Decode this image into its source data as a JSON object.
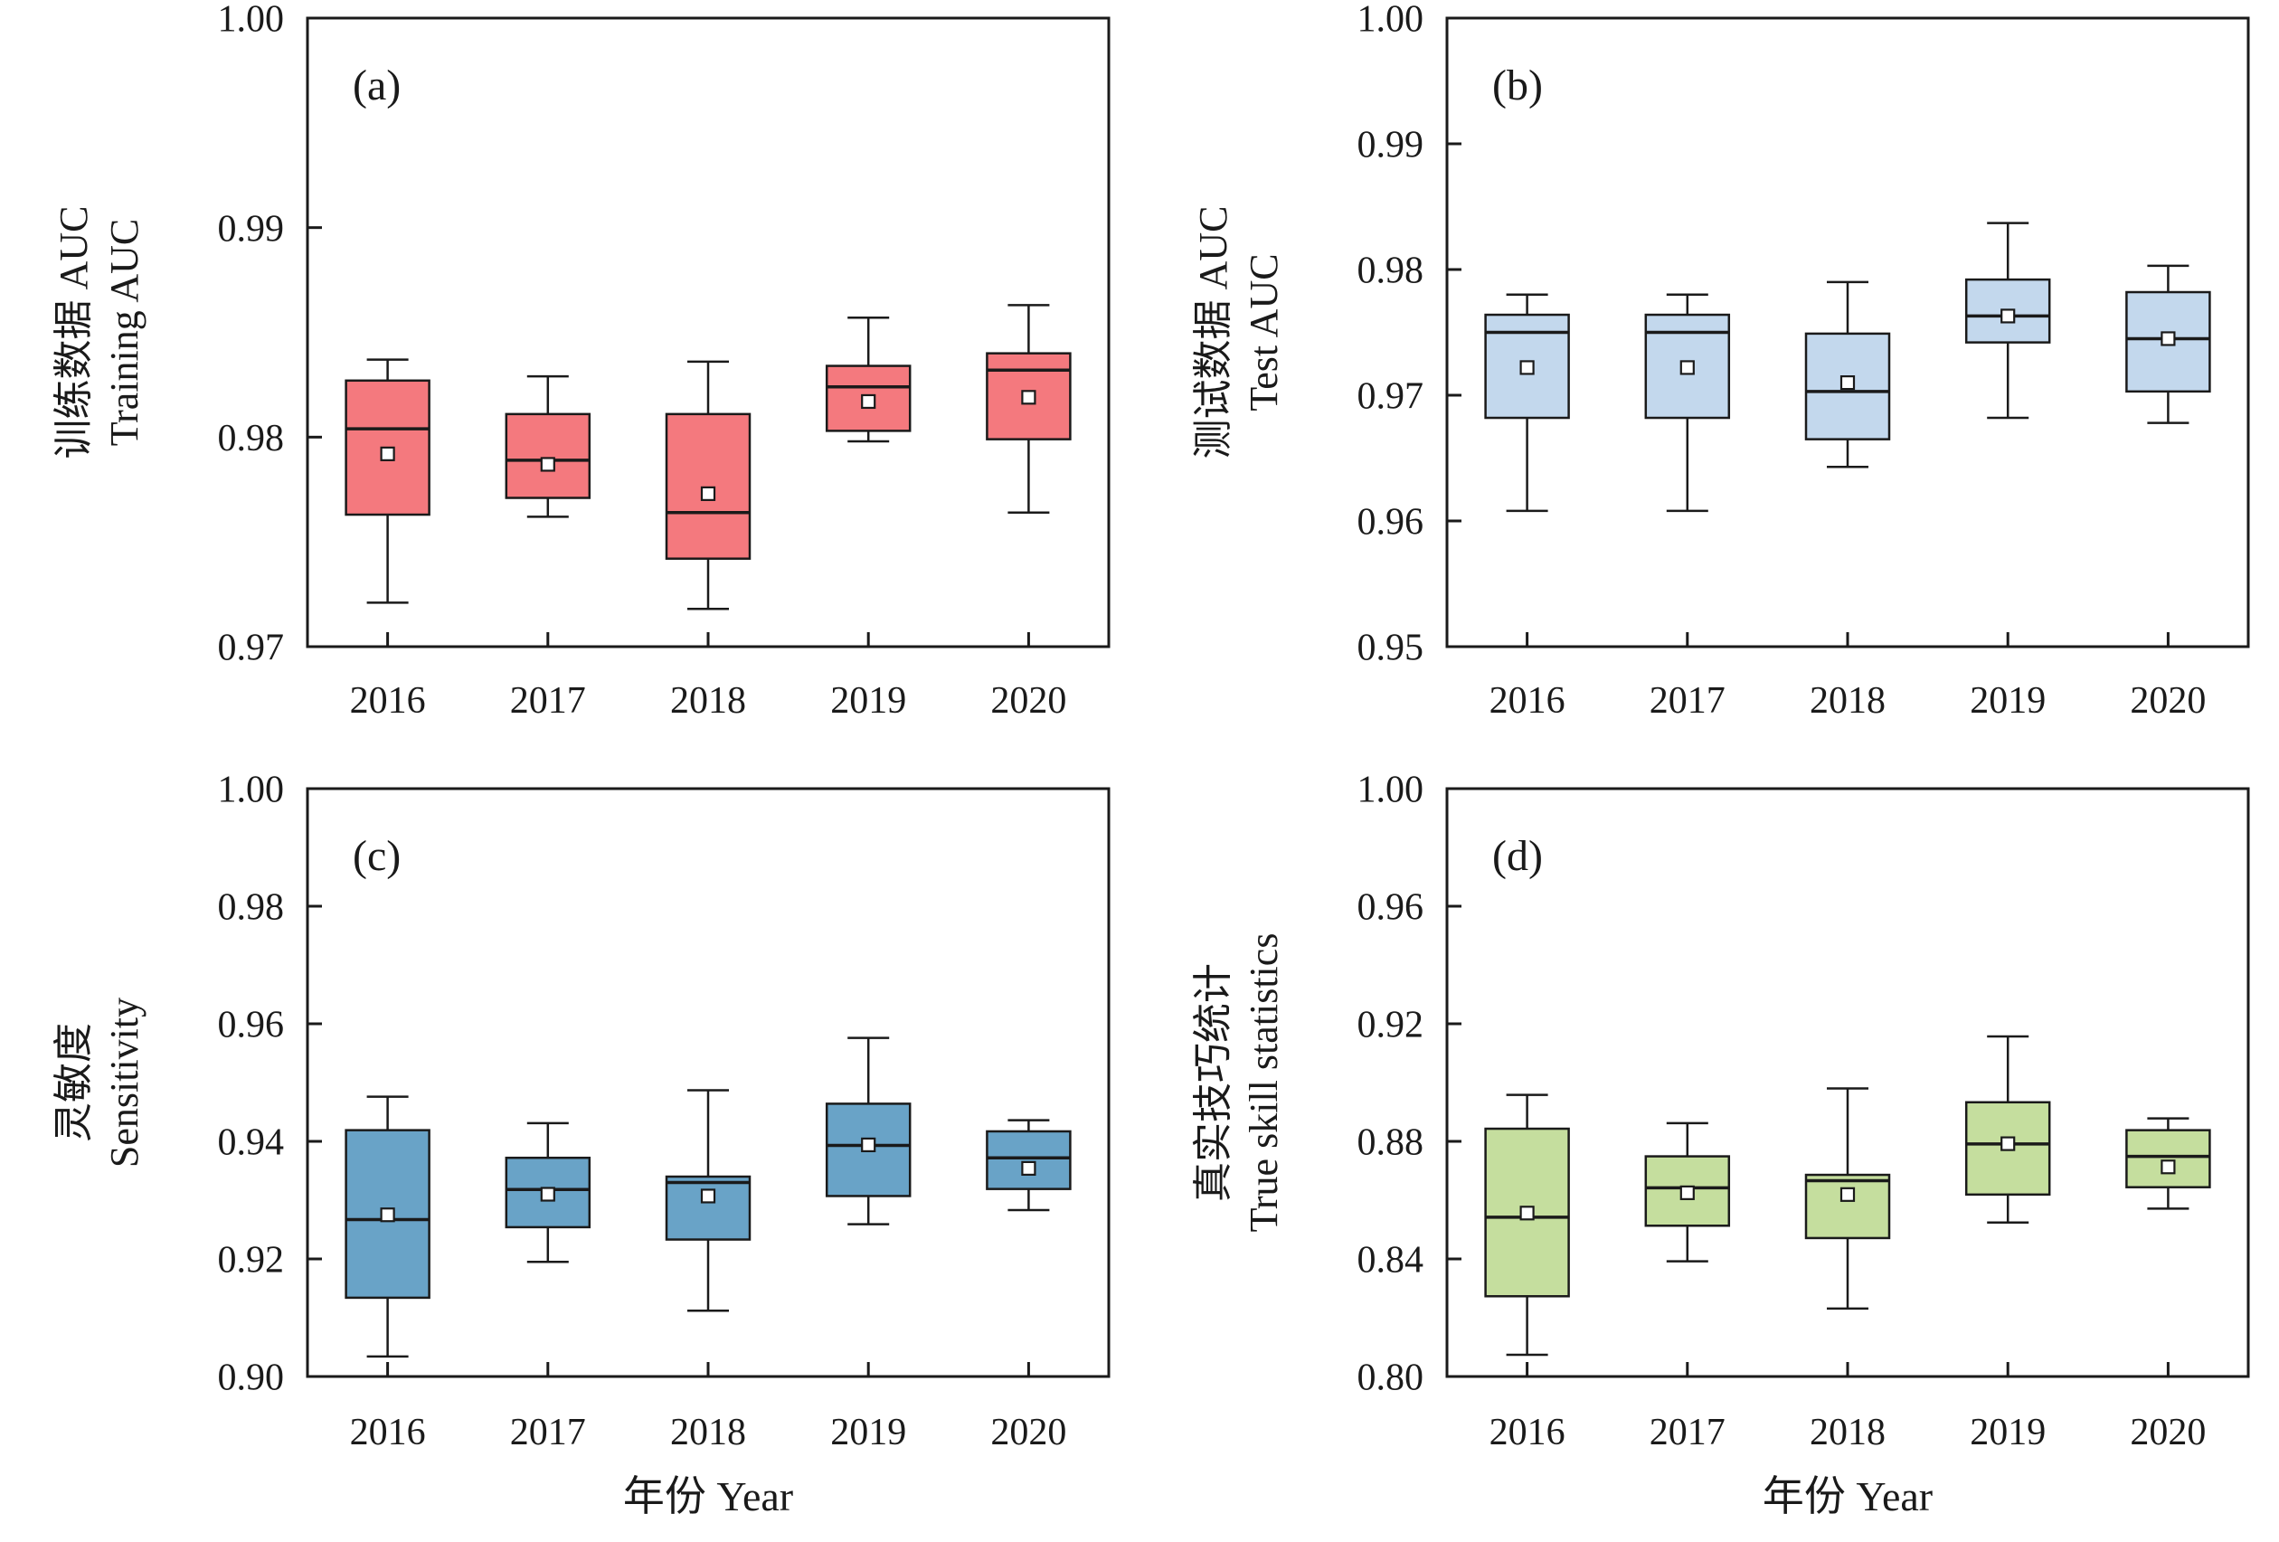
{
  "figure": {
    "background": "#FFFFFF",
    "axis_color": "#1A1A1A",
    "mean_marker": "open-square",
    "categories": [
      "2016",
      "2017",
      "2018",
      "2019",
      "2020"
    ],
    "xlabel": "年份 Year"
  },
  "chart_data": [
    {
      "type": "box",
      "panel_letter": "(a)",
      "ylabel_lines": [
        "训练数据 AUC",
        "Training AUC"
      ],
      "fill": "#F4797E",
      "ylim": [
        0.97,
        1.0
      ],
      "ytick_values": [
        0.97,
        0.98,
        0.99,
        1.0
      ],
      "ytick_labels": [
        "0.97",
        "0.98",
        "0.99",
        "1.00"
      ],
      "categories": [
        "2016",
        "2017",
        "2018",
        "2019",
        "2020"
      ],
      "show_xlabel": false,
      "series": [
        {
          "year": "2016",
          "whisker_low": 0.9721,
          "q1": 0.9763,
          "median": 0.9804,
          "mean": 0.9792,
          "q3": 0.9827,
          "whisker_high": 0.9837
        },
        {
          "year": "2017",
          "whisker_low": 0.9762,
          "q1": 0.9771,
          "median": 0.9789,
          "mean": 0.9787,
          "q3": 0.9811,
          "whisker_high": 0.9829
        },
        {
          "year": "2018",
          "whisker_low": 0.9718,
          "q1": 0.9742,
          "median": 0.9764,
          "mean": 0.9773,
          "q3": 0.9811,
          "whisker_high": 0.9836
        },
        {
          "year": "2019",
          "whisker_low": 0.9798,
          "q1": 0.9803,
          "median": 0.9824,
          "mean": 0.9817,
          "q3": 0.9834,
          "whisker_high": 0.9857
        },
        {
          "year": "2020",
          "whisker_low": 0.9764,
          "q1": 0.9799,
          "median": 0.9832,
          "mean": 0.9819,
          "q3": 0.984,
          "whisker_high": 0.9863
        }
      ]
    },
    {
      "type": "box",
      "panel_letter": "(b)",
      "ylabel_lines": [
        "测试数据 AUC",
        "Test AUC"
      ],
      "fill": "#C3D8ED",
      "ylim": [
        0.95,
        1.0
      ],
      "ytick_values": [
        0.95,
        0.96,
        0.97,
        0.98,
        0.99,
        1.0
      ],
      "ytick_labels": [
        "0.95",
        "0.96",
        "0.97",
        "0.98",
        "0.99",
        "1.00"
      ],
      "categories": [
        "2016",
        "2017",
        "2018",
        "2019",
        "2020"
      ],
      "show_xlabel": false,
      "series": [
        {
          "year": "2016",
          "whisker_low": 0.9608,
          "q1": 0.9682,
          "median": 0.975,
          "mean": 0.9722,
          "q3": 0.9764,
          "whisker_high": 0.978
        },
        {
          "year": "2017",
          "whisker_low": 0.9608,
          "q1": 0.9682,
          "median": 0.975,
          "mean": 0.9722,
          "q3": 0.9764,
          "whisker_high": 0.978
        },
        {
          "year": "2018",
          "whisker_low": 0.9643,
          "q1": 0.9665,
          "median": 0.9703,
          "mean": 0.971,
          "q3": 0.9749,
          "whisker_high": 0.979
        },
        {
          "year": "2019",
          "whisker_low": 0.9682,
          "q1": 0.9742,
          "median": 0.9763,
          "mean": 0.9763,
          "q3": 0.9792,
          "whisker_high": 0.9837
        },
        {
          "year": "2020",
          "whisker_low": 0.9678,
          "q1": 0.9703,
          "median": 0.9745,
          "mean": 0.9745,
          "q3": 0.9782,
          "whisker_high": 0.9803
        }
      ]
    },
    {
      "type": "box",
      "panel_letter": "(c)",
      "ylabel_lines": [
        "灵敏度",
        "Sensitivity"
      ],
      "fill": "#69A3C7",
      "ylim": [
        0.9,
        1.0
      ],
      "ytick_values": [
        0.9,
        0.92,
        0.94,
        0.96,
        0.98,
        1.0
      ],
      "ytick_labels": [
        "0.90",
        "0.92",
        "0.94",
        "0.96",
        "0.98",
        "1.00"
      ],
      "categories": [
        "2016",
        "2017",
        "2018",
        "2019",
        "2020"
      ],
      "show_xlabel": true,
      "xlabel": "年份 Year",
      "series": [
        {
          "year": "2016",
          "whisker_low": 0.9034,
          "q1": 0.9134,
          "median": 0.9267,
          "mean": 0.9275,
          "q3": 0.9419,
          "whisker_high": 0.9476
        },
        {
          "year": "2017",
          "whisker_low": 0.9195,
          "q1": 0.9254,
          "median": 0.9318,
          "mean": 0.931,
          "q3": 0.9372,
          "whisker_high": 0.9431
        },
        {
          "year": "2018",
          "whisker_low": 0.9112,
          "q1": 0.9233,
          "median": 0.933,
          "mean": 0.9307,
          "q3": 0.934,
          "whisker_high": 0.9487
        },
        {
          "year": "2019",
          "whisker_low": 0.9259,
          "q1": 0.9307,
          "median": 0.9393,
          "mean": 0.9394,
          "q3": 0.9464,
          "whisker_high": 0.9576
        },
        {
          "year": "2020",
          "whisker_low": 0.9283,
          "q1": 0.9319,
          "median": 0.9372,
          "mean": 0.9354,
          "q3": 0.9417,
          "whisker_high": 0.9436
        }
      ]
    },
    {
      "type": "box",
      "panel_letter": "(d)",
      "ylabel_lines": [
        "真实技巧统计",
        "True skill statistics"
      ],
      "fill": "#C5DE9E",
      "ylim": [
        0.8,
        1.0
      ],
      "ytick_values": [
        0.8,
        0.84,
        0.88,
        0.92,
        0.96,
        1.0
      ],
      "ytick_labels": [
        "0.80",
        "0.84",
        "0.88",
        "0.92",
        "0.96",
        "1.00"
      ],
      "categories": [
        "2016",
        "2017",
        "2018",
        "2019",
        "2020"
      ],
      "show_xlabel": true,
      "xlabel": "年份 Year",
      "series": [
        {
          "year": "2016",
          "whisker_low": 0.8074,
          "q1": 0.8273,
          "median": 0.8542,
          "mean": 0.8556,
          "q3": 0.8843,
          "whisker_high": 0.8958
        },
        {
          "year": "2017",
          "whisker_low": 0.8392,
          "q1": 0.8513,
          "median": 0.8642,
          "mean": 0.8625,
          "q3": 0.8749,
          "whisker_high": 0.8862
        },
        {
          "year": "2018",
          "whisker_low": 0.8231,
          "q1": 0.8471,
          "median": 0.8666,
          "mean": 0.8619,
          "q3": 0.8686,
          "whisker_high": 0.898
        },
        {
          "year": "2019",
          "whisker_low": 0.8524,
          "q1": 0.8619,
          "median": 0.8791,
          "mean": 0.8792,
          "q3": 0.8933,
          "whisker_high": 0.9157
        },
        {
          "year": "2020",
          "whisker_low": 0.8571,
          "q1": 0.8644,
          "median": 0.8749,
          "mean": 0.8713,
          "q3": 0.8838,
          "whisker_high": 0.8878
        }
      ]
    }
  ]
}
